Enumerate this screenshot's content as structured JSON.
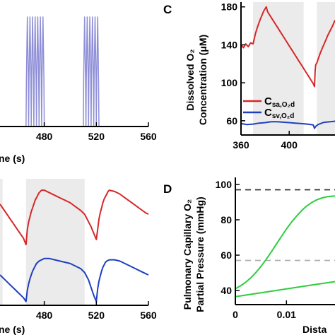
{
  "panel_labels": {
    "c": "C",
    "d": "D"
  },
  "chart_data": [
    {
      "id": "top-left",
      "type": "line",
      "xlabel_visible": "ne (s)",
      "xticks": [
        "480",
        "520",
        "560"
      ],
      "xlim": [
        446,
        560
      ],
      "ylim": [
        0,
        1
      ],
      "color": "#8f8fd8",
      "series": [
        {
          "x": [
            446,
            466,
            466.3,
            467,
            467.7,
            468,
            468.3,
            469,
            469.7,
            470,
            470.3,
            471,
            471.7,
            472,
            472.3,
            473,
            473.7,
            474,
            474.3,
            475,
            475.7,
            476,
            476.3,
            477,
            477.7,
            478,
            478.3,
            479,
            479.7,
            480,
            510,
            510.3,
            511,
            511.7,
            512,
            512.3,
            513,
            513.7,
            514,
            514.3,
            515,
            515.7,
            516,
            516.3,
            517,
            517.7,
            518,
            518.3,
            519,
            519.7,
            520,
            520.3,
            521,
            521.7,
            522,
            560
          ],
          "y": [
            0,
            0,
            0.45,
            1,
            0.45,
            0,
            0.45,
            1,
            0.45,
            0,
            0.45,
            1,
            0.45,
            0,
            0.45,
            1,
            0.45,
            0,
            0.45,
            1,
            0.45,
            0,
            0.45,
            1,
            0.45,
            0,
            0.45,
            1,
            0.45,
            0,
            0,
            0.45,
            1,
            0.45,
            0,
            0.45,
            1,
            0.45,
            0,
            0.45,
            1,
            0.45,
            0,
            0.45,
            1,
            0.45,
            0,
            0.45,
            1,
            0.45,
            0,
            0.45,
            1,
            0.45,
            0,
            0
          ]
        }
      ]
    },
    {
      "id": "C",
      "type": "line",
      "ylabel": [
        "Dissolved O₂",
        "Concentration (μM)"
      ],
      "xticks": [
        "360",
        "400"
      ],
      "yticks": [
        "60",
        "100",
        "140",
        "180"
      ],
      "xlim": [
        360,
        438
      ],
      "ylim": [
        45,
        185
      ],
      "shaded": [
        [
          370,
          412
        ],
        [
          423,
          438
        ]
      ],
      "series": [
        {
          "name": "C",
          "sub": "sa,O₂d",
          "color": "#d62728",
          "x": [
            360,
            362,
            364,
            366,
            368,
            370,
            372,
            374,
            376,
            378,
            379,
            380,
            381,
            382,
            384,
            386,
            388,
            390,
            392,
            394,
            396,
            398,
            400,
            402,
            404,
            406,
            408,
            410,
            412,
            414,
            416,
            418,
            420,
            421,
            421.5,
            422,
            423,
            424,
            426,
            428,
            430,
            432,
            434,
            436,
            438
          ],
          "y": [
            140,
            137,
            141,
            138,
            142,
            141,
            152,
            160,
            167,
            173,
            176,
            178,
            180,
            175,
            171,
            167,
            163,
            159,
            155,
            151,
            147,
            143,
            139,
            135,
            131,
            127,
            123,
            119,
            115,
            111,
            107,
            103,
            99,
            96,
            112,
            119,
            121,
            125,
            132,
            138,
            144,
            150,
            155,
            160,
            166
          ]
        },
        {
          "name": "C",
          "sub": "sv,O₂d",
          "color": "#1f3fbf",
          "x": [
            360,
            365,
            370,
            375,
            380,
            385,
            390,
            395,
            400,
            405,
            410,
            415,
            418,
            420,
            421,
            422,
            424,
            426,
            428,
            430,
            434,
            438
          ],
          "y": [
            57,
            56,
            56.5,
            57.5,
            58,
            59,
            59,
            58.5,
            58,
            57.5,
            57,
            56.5,
            56,
            55.5,
            52,
            54,
            56,
            57,
            58,
            58.5,
            59,
            59.5
          ]
        }
      ]
    },
    {
      "id": "bottom-left",
      "type": "line",
      "xlabel_visible": "ne (s)",
      "xticks": [
        "480",
        "520",
        "560"
      ],
      "xlim": [
        446,
        560
      ],
      "ylim": [
        0,
        1
      ],
      "shaded": [
        [
          446,
          448
        ],
        [
          466,
          511
        ]
      ],
      "series": [
        {
          "color": "#d62728",
          "x": [
            446,
            448,
            450,
            452,
            454,
            456,
            458,
            460,
            462,
            464,
            466,
            467,
            468,
            469,
            470,
            471,
            472,
            473,
            474,
            475,
            476,
            477,
            478,
            480,
            484,
            488,
            492,
            496,
            500,
            504,
            508,
            511,
            514,
            516,
            518,
            520,
            521,
            522,
            523,
            524,
            525,
            526,
            527,
            528,
            529,
            530,
            534,
            538,
            542,
            546,
            550,
            554,
            558,
            560
          ],
          "y": [
            0.8,
            0.77,
            0.74,
            0.71,
            0.68,
            0.65,
            0.62,
            0.59,
            0.56,
            0.53,
            0.48,
            0.6,
            0.66,
            0.7,
            0.74,
            0.77,
            0.8,
            0.83,
            0.85,
            0.87,
            0.89,
            0.9,
            0.91,
            0.91,
            0.89,
            0.87,
            0.85,
            0.83,
            0.81,
            0.78,
            0.75,
            0.72,
            0.66,
            0.62,
            0.57,
            0.52,
            0.6,
            0.68,
            0.73,
            0.77,
            0.81,
            0.84,
            0.86,
            0.88,
            0.9,
            0.91,
            0.9,
            0.88,
            0.85,
            0.82,
            0.79,
            0.76,
            0.73,
            0.72
          ]
        },
        {
          "color": "#1f3fbf",
          "x": [
            446,
            448,
            450,
            452,
            454,
            456,
            458,
            460,
            462,
            464,
            466,
            467,
            468,
            469,
            470,
            471,
            472,
            473,
            474,
            476,
            478,
            480,
            484,
            488,
            492,
            496,
            500,
            504,
            508,
            511,
            514,
            516,
            518,
            520,
            521,
            522,
            523,
            524,
            525,
            526,
            527,
            528,
            530,
            534,
            538,
            542,
            546,
            550,
            554,
            558,
            560
          ],
          "y": [
            0.24,
            0.22,
            0.2,
            0.18,
            0.16,
            0.14,
            0.12,
            0.1,
            0.08,
            0.06,
            0.03,
            0.12,
            0.17,
            0.21,
            0.24,
            0.27,
            0.29,
            0.31,
            0.33,
            0.35,
            0.36,
            0.37,
            0.37,
            0.36,
            0.35,
            0.34,
            0.33,
            0.31,
            0.29,
            0.26,
            0.2,
            0.14,
            0.08,
            0.03,
            0.13,
            0.19,
            0.23,
            0.27,
            0.3,
            0.32,
            0.34,
            0.35,
            0.36,
            0.36,
            0.35,
            0.33,
            0.31,
            0.29,
            0.27,
            0.25,
            0.24
          ]
        }
      ]
    },
    {
      "id": "D",
      "type": "line",
      "ylabel": [
        "Pulmonary Capillary O₂",
        "Partial Pressure (mmHg)"
      ],
      "xlabel_visible": "Dista",
      "xticks": [
        "0",
        "0.01"
      ],
      "yticks": [
        "40",
        "60",
        "80",
        "100"
      ],
      "xlim": [
        0,
        0.0195
      ],
      "ylim": [
        32,
        104
      ],
      "hlines": [
        {
          "y": 97,
          "color": "#333333"
        },
        {
          "y": 57,
          "color": "#b0b0b0"
        }
      ],
      "series": [
        {
          "color": "#2ecc40",
          "x": [
            0,
            0.001,
            0.002,
            0.003,
            0.004,
            0.005,
            0.006,
            0.007,
            0.008,
            0.009,
            0.01,
            0.011,
            0.012,
            0.013,
            0.014,
            0.015,
            0.016,
            0.017,
            0.018,
            0.0195
          ],
          "y": [
            41,
            42.6,
            44.6,
            47.1,
            50.1,
            53.6,
            57.5,
            61.7,
            66.1,
            70.5,
            74.8,
            78.7,
            82.2,
            85.3,
            87.9,
            89.9,
            91.4,
            92.4,
            93.1,
            93.5
          ]
        },
        {
          "color": "#2ecc40",
          "x": [
            0,
            0.005,
            0.01,
            0.015,
            0.0195
          ],
          "y": [
            36.5,
            38.7,
            40.9,
            43.1,
            45
          ]
        }
      ]
    }
  ]
}
